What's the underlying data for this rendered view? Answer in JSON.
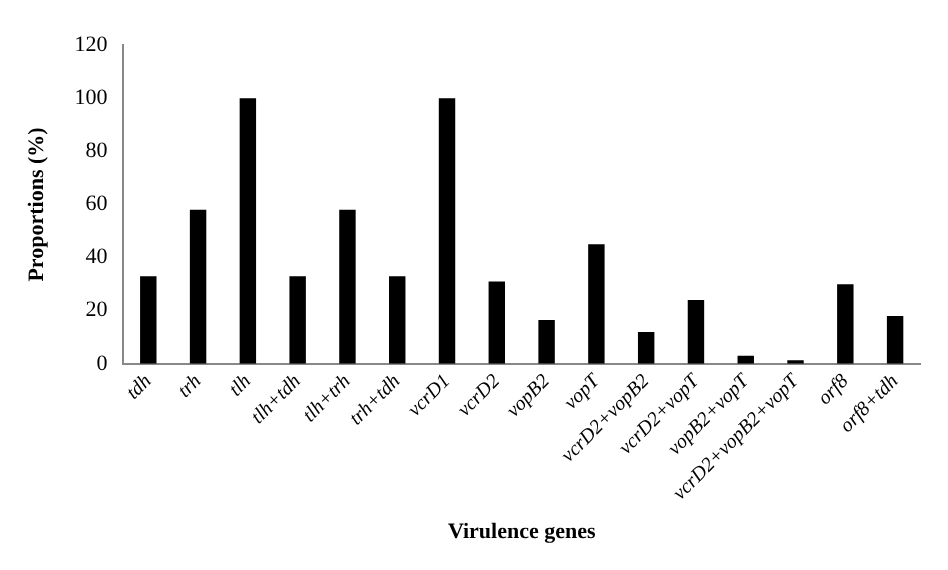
{
  "chart_data": {
    "type": "bar",
    "xlabel": "Virulence genes",
    "ylabel": "Proportions (%)",
    "categories": [
      "tdh",
      "trh",
      "tlh",
      "tlh+tdh",
      "tlh+trh",
      "trh+tdh",
      "vcrD1",
      "vcrD2",
      "vopB2",
      "vopT",
      "vcrD2+vopB2",
      "vcrD2+vopT",
      "vopB2+vopT",
      "vcrD2+vopB2+vopT",
      "orf8",
      "orf8+tdh"
    ],
    "values": [
      33,
      58,
      100,
      33,
      58,
      33,
      100,
      31,
      16.5,
      45,
      12,
      24,
      3,
      1.3,
      30,
      18
    ],
    "color": "#000000",
    "ylim": [
      0,
      120
    ],
    "yticks": [
      0,
      20,
      40,
      60,
      80,
      100,
      120
    ],
    "grid": false,
    "legend": false
  }
}
